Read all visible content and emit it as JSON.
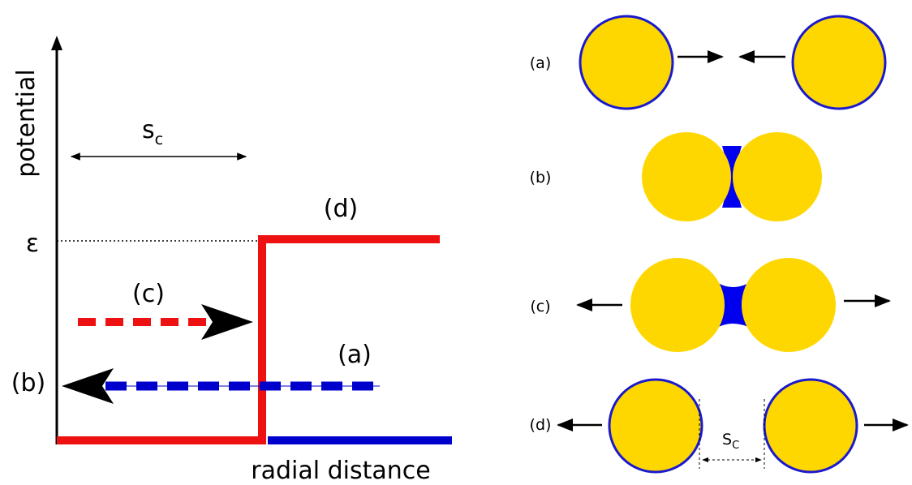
{
  "left": {
    "y_label": "potential",
    "x_label": "radial distance",
    "sc": {
      "base": "s",
      "sub": "c"
    },
    "epsilon": "ε",
    "labels": {
      "a": "(a)",
      "b": "(b)",
      "c": "(c)",
      "d": "(d)"
    }
  },
  "right": {
    "rows": [
      {
        "label": "(a)"
      },
      {
        "label": "(b)"
      },
      {
        "label": "(c)"
      },
      {
        "label": "(d)"
      }
    ],
    "sc": {
      "base": "S",
      "sub": "C"
    }
  }
}
